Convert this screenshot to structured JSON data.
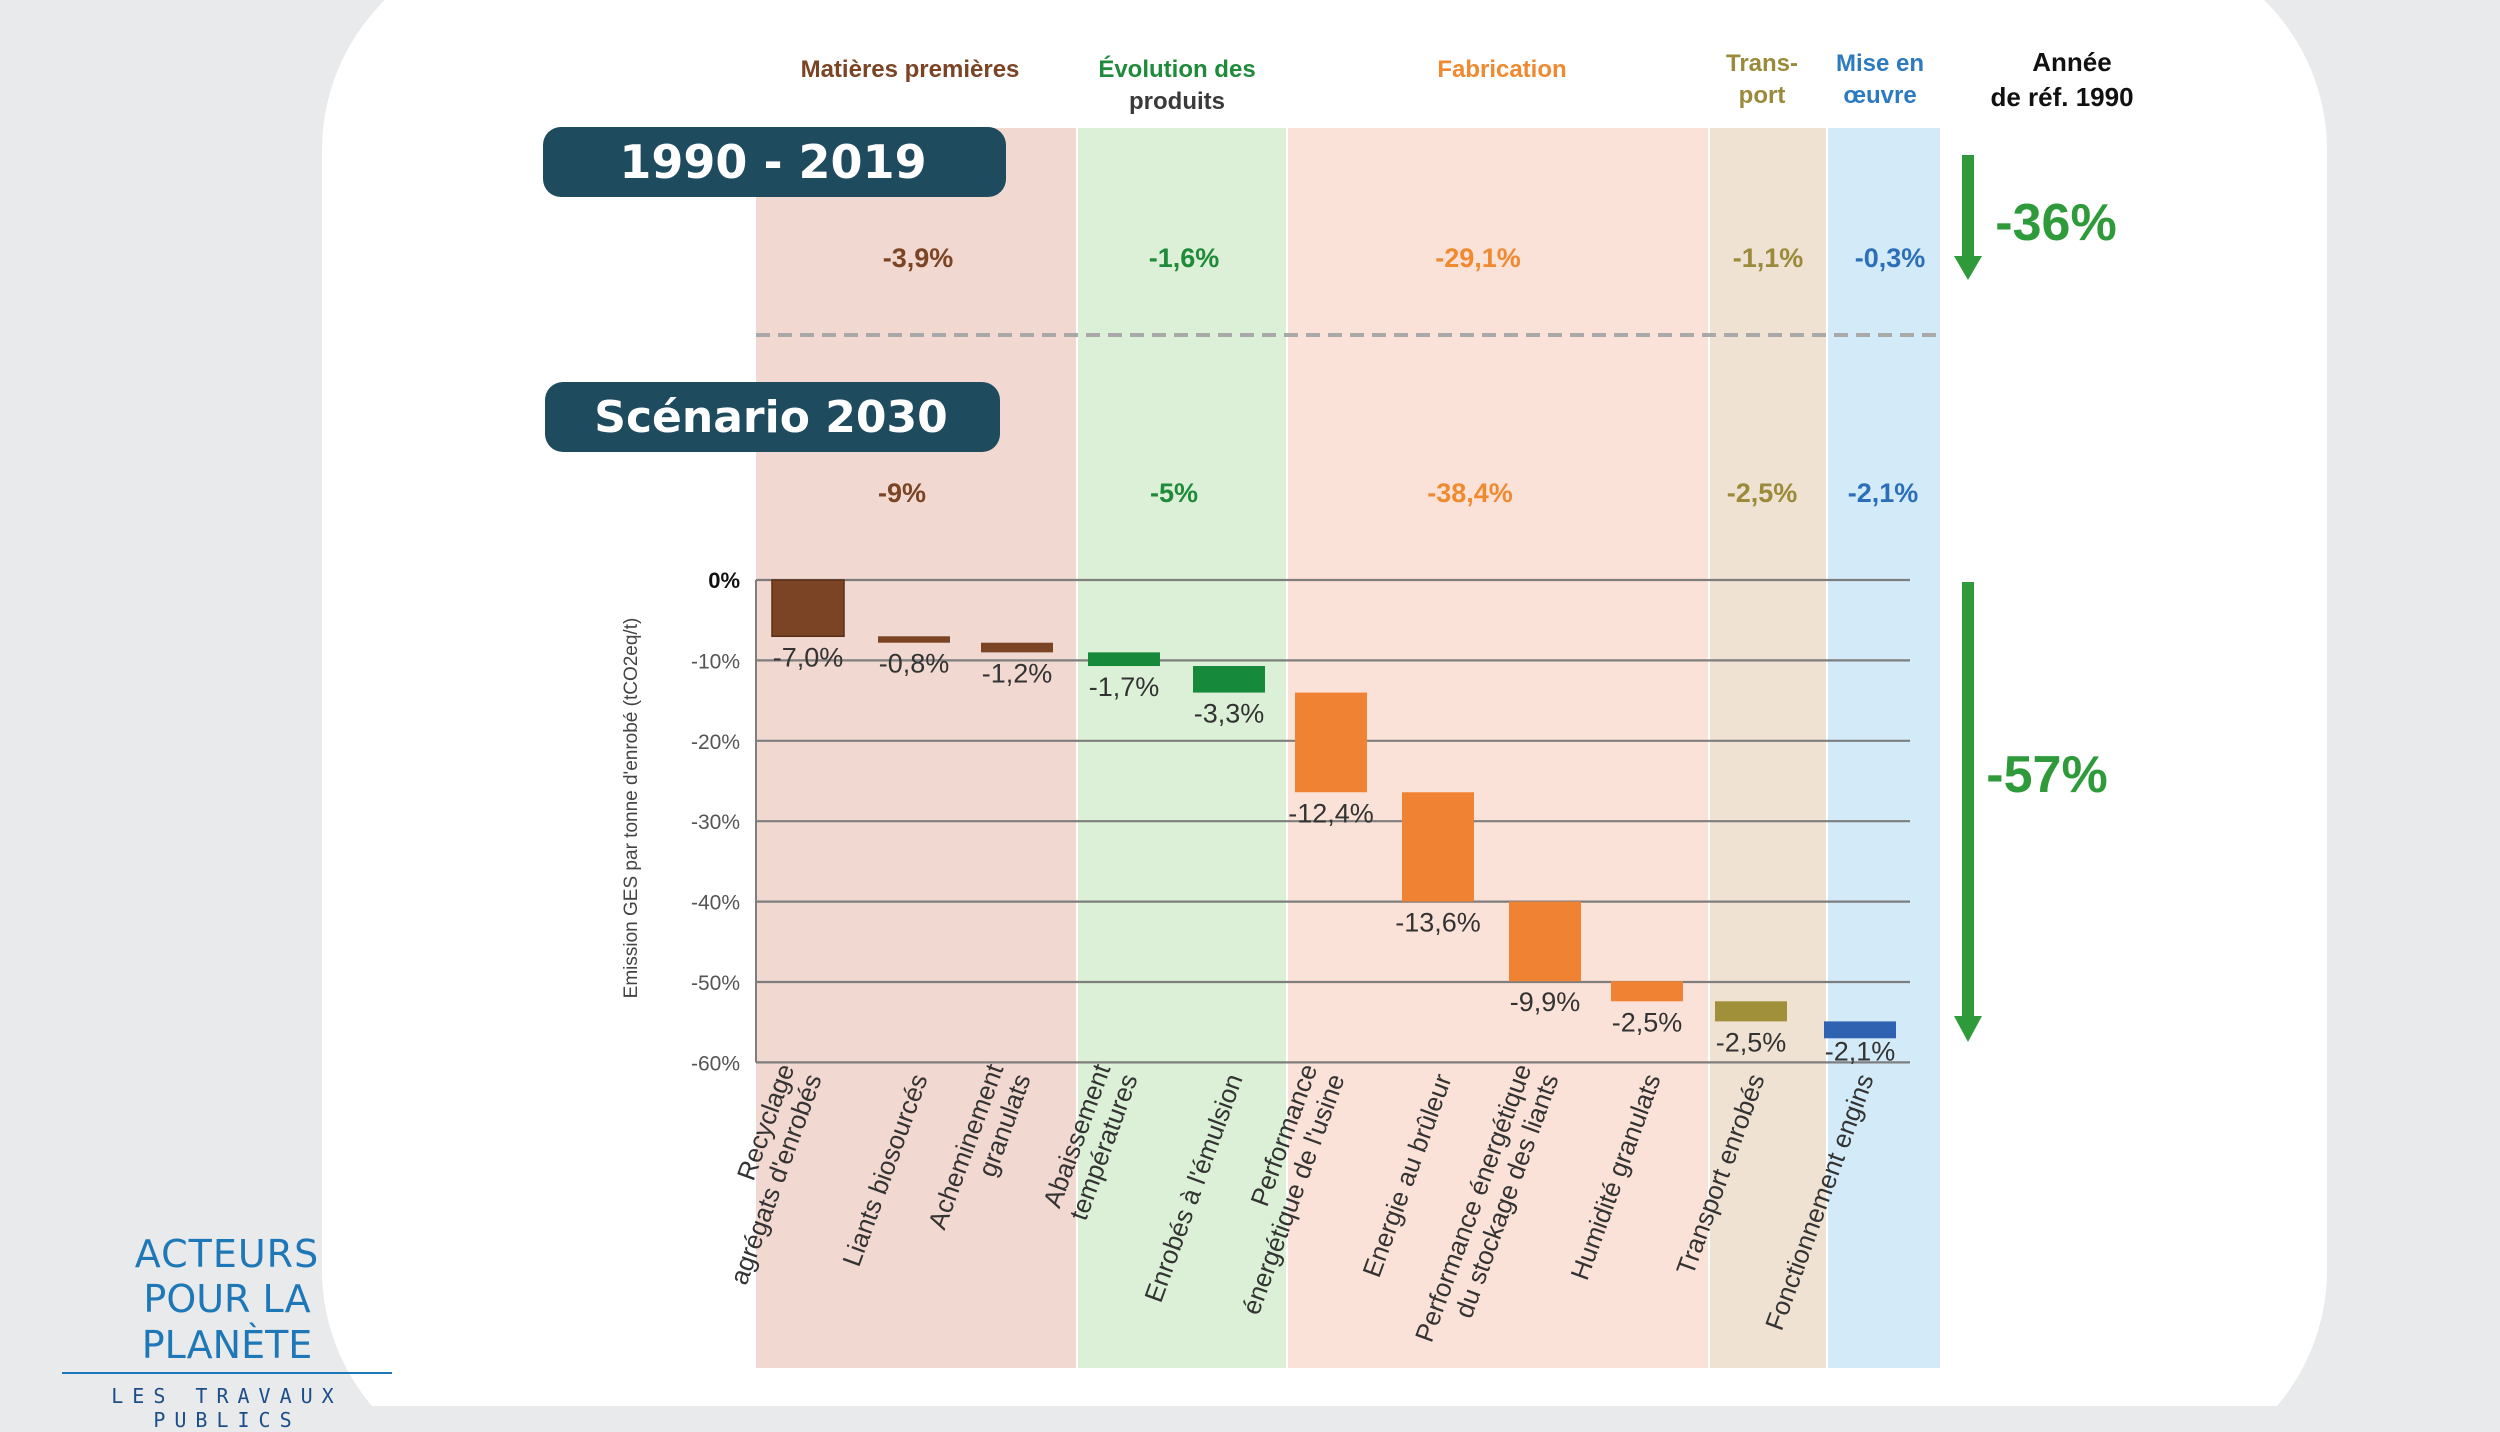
{
  "colors": {
    "col_matieres": "#f1d8d0",
    "col_evolution": "#dbf0d6",
    "col_fabrication": "#fbe2d8",
    "col_transport": "#efe2d2",
    "col_mise": "#d3ebf8",
    "bar_matieres": "#7a4425",
    "bar_evolution": "#168a3a",
    "bar_fabrication": "#f08333",
    "bar_transport": "#a0903a",
    "bar_mise": "#2f62b0",
    "badge": "#1e4b5e",
    "green_arrow": "#2e9a3a"
  },
  "header": {
    "matieres": "Matières premières",
    "evolution_1": "Évolution des",
    "evolution_2": "produits",
    "fabrication": "Fabrication",
    "transport_1": "Trans-",
    "transport_2": "port",
    "mise_1": "Mise en",
    "mise_2": "œuvre",
    "ref_1": "Année",
    "ref_2": "de réf. 1990"
  },
  "badges": {
    "period_1": "1990 - 2019",
    "period_2": "Scénario 2030"
  },
  "row_1990": {
    "matieres": "-3,9%",
    "evolution": "-1,6%",
    "fabrication": "-29,1%",
    "transport": "-1,1%",
    "mise": "-0,3%",
    "total": "-36%"
  },
  "row_2030": {
    "matieres": "-9%",
    "evolution": "-5%",
    "fabrication": "-38,4%",
    "transport": "-2,5%",
    "mise": "-2,1%",
    "total": "-57%"
  },
  "chart_data": {
    "type": "bar",
    "subtype": "waterfall",
    "ylabel": "Emission GES par tonne d'enrobé (tCO2eq/t)",
    "ylim": [
      -60,
      0
    ],
    "yticks": [
      "0%",
      "-10%",
      "-20%",
      "-30%",
      "-40%",
      "-50%",
      "-60%"
    ],
    "grid": true,
    "categories": [
      "Recyclage agrégats d'enrobés",
      "Liants biosourcés",
      "Acheminement granulats",
      "Abaissement températures",
      "Enrobés à l'émulsion",
      "Performance énergétique de l'usine",
      "Energie au brûleur",
      "Performance énergétique du stockage des liants",
      "Humidité granulats",
      "Transport enrobés",
      "Fonctionnement engins"
    ],
    "values": [
      -7.0,
      -0.8,
      -1.2,
      -1.7,
      -3.3,
      -12.4,
      -13.6,
      -9.9,
      -2.5,
      -2.5,
      -2.1
    ],
    "value_labels": [
      "-7,0%",
      "-0,8%",
      "-1,2%",
      "-1,7%",
      "-3,3%",
      "-12,4%",
      "-13,6%",
      "-9,9%",
      "-2,5%",
      "-2,5%",
      "-2,1%"
    ],
    "groups": [
      "matieres",
      "matieres",
      "matieres",
      "evolution",
      "evolution",
      "fabrication",
      "fabrication",
      "fabrication",
      "fabrication",
      "transport",
      "mise"
    ]
  }
}
